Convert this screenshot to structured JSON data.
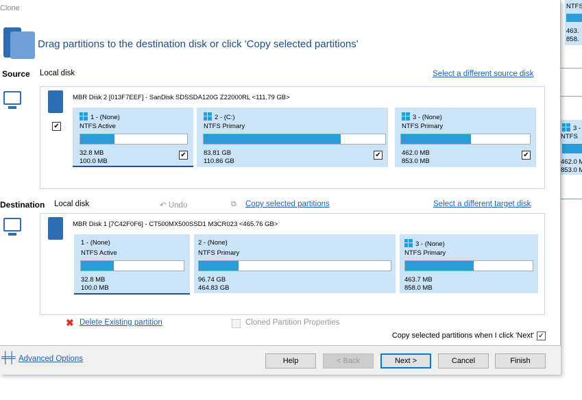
{
  "window": {
    "title": "Clone"
  },
  "header": {
    "instruction": "Drag partitions to the destination disk or click 'Copy selected partitions'"
  },
  "source": {
    "label": "Source",
    "type": "Local disk",
    "change_link": "Select a different source disk",
    "disk": "MBR Disk 2 [013F7EEF] - SanDisk SDSSDA120G Z22000RL  <111.79 GB>",
    "disk_checked": true,
    "partitions": [
      {
        "name": "1 -  (None)",
        "type": "NTFS Active",
        "used": "32.8 MB",
        "total": "100.0 MB",
        "fill_pct": 32,
        "checked": true,
        "windows_icon": true
      },
      {
        "name": "2 -  (C:)",
        "type": "NTFS Primary",
        "used": "83.81 GB",
        "total": "110.86 GB",
        "fill_pct": 75.6,
        "checked": true,
        "windows_icon": true
      },
      {
        "name": "3 -  (None)",
        "type": "NTFS Primary",
        "used": "462.0 MB",
        "total": "853.0 MB",
        "fill_pct": 54,
        "checked": true,
        "windows_icon": true
      }
    ]
  },
  "destination": {
    "label": "Destination",
    "type": "Local disk",
    "undo": "Undo",
    "copy_link": "Copy selected partitions",
    "change_link": "Select a different target disk",
    "disk": "MBR Disk 1 [7C42F0F6] - CT500MX500SSD1 M3CR023  <465.76 GB>",
    "partitions": [
      {
        "name": "1 -  (None)",
        "type": "NTFS Active",
        "used": "32.8 MB",
        "total": "100.0 MB",
        "fill_pct": 32
      },
      {
        "name": "2 -  (None)",
        "type": "NTFS Primary",
        "used": "96.74 GB",
        "total": "464.83 GB",
        "fill_pct": 20.8
      },
      {
        "name": "3 -  (None)",
        "type": "NTFS Primary",
        "used": "463.7 MB",
        "total": "858.0 MB",
        "fill_pct": 54,
        "windows_icon": true
      }
    ]
  },
  "actions": {
    "delete": "Delete Existing partition",
    "properties": "Cloned Partition Properties",
    "copy_on_next": "Copy selected partitions when I click 'Next'",
    "copy_on_next_checked": true
  },
  "footer": {
    "advanced": "Advanced Options",
    "help": "Help",
    "back": "< Back",
    "next": "Next >",
    "cancel": "Cancel",
    "finish": "Finish"
  },
  "background_window": {
    "top_used": "463.",
    "top_total": "858.",
    "part": "3 -",
    "type": "NTFS",
    "used": "462.0 M",
    "total": "853.0 M"
  },
  "colors": {
    "accent": "#1a62b8",
    "partition_bg": "#cce4f7",
    "bar_fill": "#2a9dd8"
  }
}
